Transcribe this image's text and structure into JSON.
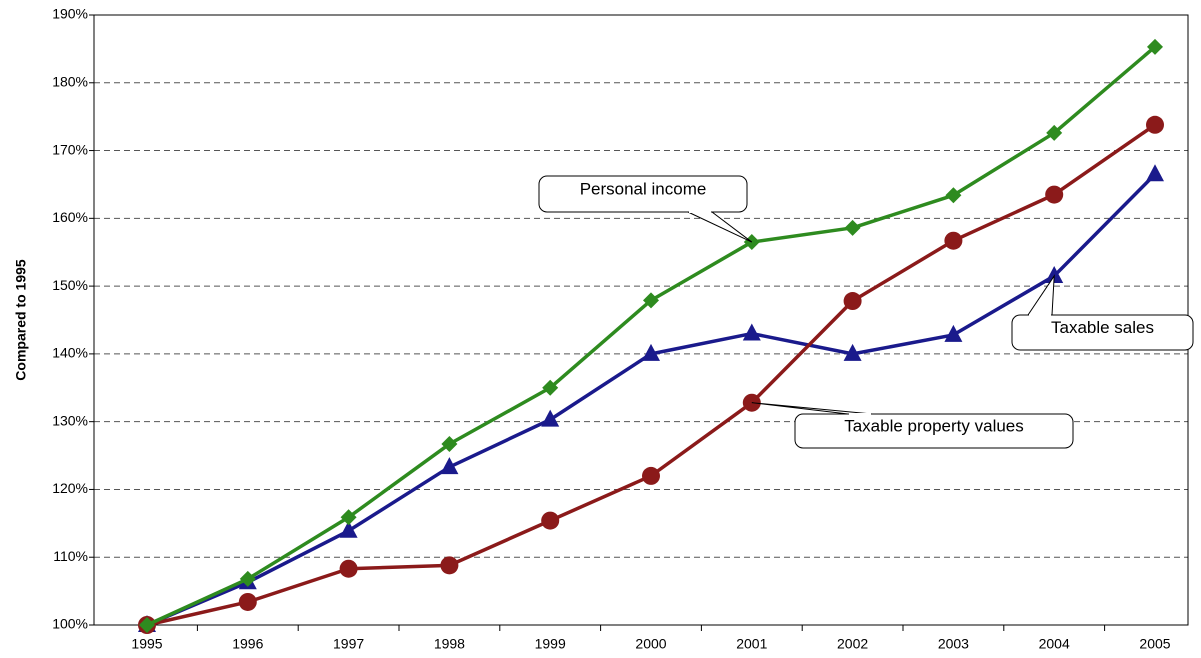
{
  "chart_data": {
    "type": "line",
    "y_label": "Compared to 1995",
    "categories": [
      "1995",
      "1996",
      "1997",
      "1998",
      "1999",
      "2000",
      "2001",
      "2002",
      "2003",
      "2004",
      "2005"
    ],
    "series": [
      {
        "name": "Personal income",
        "color": "#2e8b1f",
        "marker": "diamond",
        "values": [
          100,
          106.8,
          115.9,
          126.7,
          135,
          147.9,
          156.5,
          158.6,
          163.4,
          172.6,
          185.3
        ]
      },
      {
        "name": "Taxable sales",
        "color": "#1a1a8c",
        "marker": "triangle",
        "values": [
          100,
          106.3,
          113.9,
          123.3,
          130.3,
          140,
          143,
          140,
          142.8,
          151.5,
          166.5
        ]
      },
      {
        "name": "Taxable property values",
        "color": "#8b1a1a",
        "marker": "circle",
        "values": [
          100,
          103.4,
          108.3,
          108.8,
          115.4,
          122,
          132.8,
          147.8,
          156.7,
          163.5,
          173.8
        ]
      }
    ],
    "ylim": [
      100,
      190
    ],
    "yticks": [
      {
        "value": 100,
        "label": "100%"
      },
      {
        "value": 110,
        "label": "110%"
      },
      {
        "value": 120,
        "label": "120%"
      },
      {
        "value": 130,
        "label": "130%"
      },
      {
        "value": 140,
        "label": "140%"
      },
      {
        "value": 150,
        "label": "150%"
      },
      {
        "value": 160,
        "label": "160%"
      },
      {
        "value": 170,
        "label": "170%"
      },
      {
        "value": 180,
        "label": "180%"
      },
      {
        "value": 190,
        "label": "190%"
      }
    ],
    "grid": true
  }
}
